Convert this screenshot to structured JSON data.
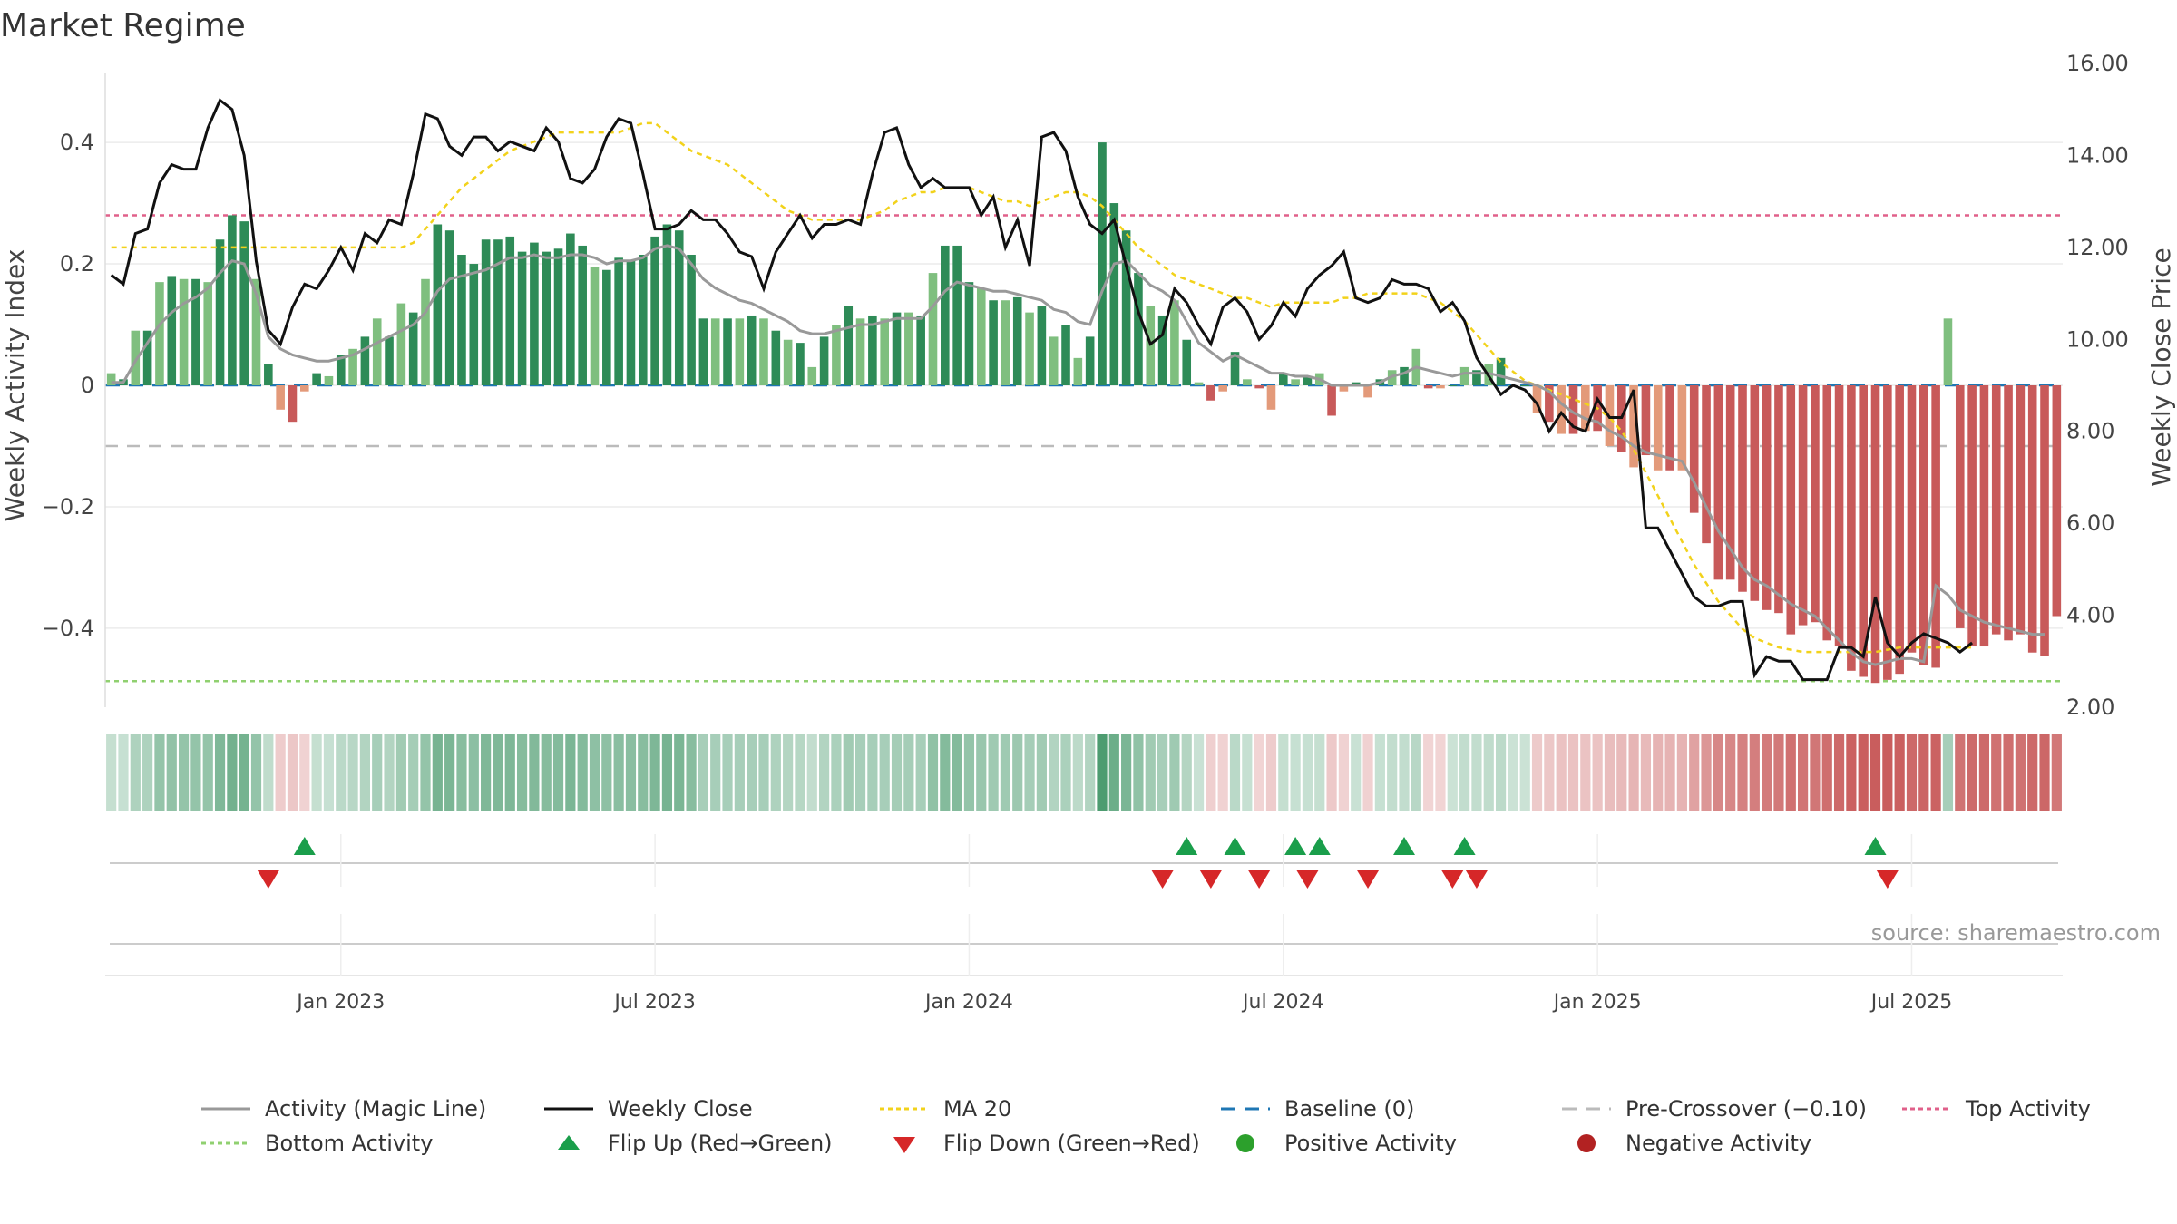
{
  "title": "Market Regime",
  "source": "source: sharemaestro.com",
  "colors": {
    "strongGreen": "#2e8b57",
    "lightGreen": "#7fbf7f",
    "strongRed": "#c85a5a",
    "lightRed": "#e39a7a",
    "close": "#111111",
    "magic": "#999999",
    "ma": "#f2d21b",
    "baseline": "#1f77b4",
    "pre": "#bbbbbb",
    "top": "#e0608a",
    "bottom": "#90d070",
    "flipUp": "#1a9e4b",
    "flipDown": "#d62728"
  },
  "legend": [
    {
      "key": "magic",
      "label": "Activity (Magic Line)"
    },
    {
      "key": "close",
      "label": "Weekly Close"
    },
    {
      "key": "ma",
      "label": "MA 20"
    },
    {
      "key": "baseline",
      "label": "Baseline (0)"
    },
    {
      "key": "pre",
      "label": "Pre-Crossover (−0.10)"
    },
    {
      "key": "top",
      "label": "Top Activity"
    },
    {
      "key": "bottom",
      "label": "Bottom Activity"
    },
    {
      "key": "flipUp",
      "label": "Flip Up (Red→Green)"
    },
    {
      "key": "flipDown",
      "label": "Flip Down (Green→Red)"
    },
    {
      "key": "pos",
      "label": "Positive Activity"
    },
    {
      "key": "neg",
      "label": "Negative Activity"
    }
  ],
  "chart_data": {
    "type": "bar",
    "title": "Market Regime",
    "ylabel": "Weekly Activity Index",
    "y2label": "Weekly Close Price",
    "ylim": [
      -0.53,
      0.53
    ],
    "y2lim": [
      2.0,
      16.0
    ],
    "yticks": [
      0.4,
      0.2,
      0,
      -0.2,
      -0.4
    ],
    "yticklabels": [
      "0.4",
      "0.2",
      "0",
      "−0.2",
      "−0.4"
    ],
    "y2ticks": [
      16,
      14,
      12,
      10,
      8,
      6,
      4,
      2
    ],
    "y2ticklabels": [
      "16.00",
      "14.00",
      "12.00",
      "10.00",
      "8.00",
      "6.00",
      "4.00",
      "2.00"
    ],
    "xticks": [
      19.5,
      45.5,
      71.5,
      97.5,
      123.5,
      149.5
    ],
    "xticklabels": [
      "Jan 2023",
      "Jul 2023",
      "Jan 2024",
      "Jul 2024",
      "Jan 2025",
      "Jul 2025"
    ],
    "reference_lines": {
      "baseline": 0,
      "pre_crossover": -0.1,
      "top_activity": 0.28,
      "bottom_activity": -0.487
    },
    "activity": [
      0.02,
      0.01,
      0.09,
      0.09,
      0.17,
      0.18,
      0.175,
      0.175,
      0.17,
      0.24,
      0.28,
      0.27,
      0.175,
      0.035,
      -0.04,
      -0.06,
      -0.01,
      0.02,
      0.015,
      0.05,
      0.06,
      0.08,
      0.11,
      0.08,
      0.135,
      0.12,
      0.175,
      0.265,
      0.255,
      0.215,
      0.2,
      0.24,
      0.24,
      0.245,
      0.22,
      0.235,
      0.22,
      0.225,
      0.25,
      0.23,
      0.195,
      0.19,
      0.21,
      0.205,
      0.215,
      0.245,
      0.265,
      0.255,
      0.215,
      0.11,
      0.11,
      0.11,
      0.11,
      0.115,
      0.11,
      0.09,
      0.075,
      0.07,
      0.03,
      0.08,
      0.1,
      0.13,
      0.11,
      0.115,
      0.11,
      0.12,
      0.12,
      0.115,
      0.185,
      0.23,
      0.23,
      0.17,
      0.16,
      0.14,
      0.14,
      0.145,
      0.12,
      0.13,
      0.08,
      0.1,
      0.045,
      0.08,
      0.4,
      0.3,
      0.255,
      0.185,
      0.13,
      0.115,
      0.14,
      0.075,
      0.005,
      -0.025,
      -0.01,
      0.055,
      0.01,
      -0.005,
      -0.04,
      0.02,
      0.01,
      0.015,
      0.02,
      -0.05,
      -0.01,
      0.005,
      -0.02,
      0.01,
      0.025,
      0.03,
      0.06,
      -0.005,
      -0.005,
      0.0,
      0.03,
      0.025,
      0.035,
      0.045,
      0.0,
      0.0,
      -0.045,
      -0.06,
      -0.08,
      -0.08,
      -0.075,
      -0.075,
      -0.1,
      -0.11,
      -0.135,
      -0.115,
      -0.14,
      -0.14,
      -0.14,
      -0.21,
      -0.26,
      -0.32,
      -0.32,
      -0.34,
      -0.355,
      -0.37,
      -0.375,
      -0.41,
      -0.395,
      -0.39,
      -0.42,
      -0.43,
      -0.47,
      -0.48,
      -0.49,
      -0.485,
      -0.475,
      -0.44,
      -0.46,
      -0.465,
      0.11,
      -0.4,
      -0.43,
      -0.43,
      -0.41,
      -0.42,
      -0.41,
      -0.44,
      -0.445,
      -0.38
    ],
    "weekly_close": [
      11.4,
      11.2,
      12.3,
      12.4,
      13.4,
      13.8,
      13.7,
      13.7,
      14.6,
      15.2,
      15.0,
      14.0,
      11.7,
      10.2,
      9.9,
      10.7,
      11.2,
      11.1,
      11.5,
      12.0,
      11.5,
      12.3,
      12.1,
      12.6,
      12.5,
      13.6,
      14.9,
      14.8,
      14.2,
      14.0,
      14.4,
      14.4,
      14.1,
      14.3,
      14.2,
      14.1,
      14.6,
      14.3,
      13.5,
      13.4,
      13.7,
      14.4,
      14.8,
      14.7,
      13.6,
      12.4,
      12.4,
      12.5,
      12.8,
      12.6,
      12.6,
      12.3,
      11.9,
      11.8,
      11.1,
      11.9,
      12.3,
      12.7,
      12.2,
      12.5,
      12.5,
      12.6,
      12.5,
      13.6,
      14.5,
      14.6,
      13.8,
      13.3,
      13.5,
      13.3,
      13.3,
      13.3,
      12.7,
      13.1,
      12.0,
      12.6,
      11.6,
      14.4,
      14.5,
      14.1,
      13.1,
      12.5,
      12.3,
      12.6,
      11.6,
      10.6,
      9.9,
      10.1,
      11.1,
      10.8,
      10.3,
      9.9,
      10.7,
      10.9,
      10.6,
      10.0,
      10.3,
      10.8,
      10.5,
      11.1,
      11.4,
      11.6,
      11.9,
      10.9,
      10.8,
      10.9,
      11.3,
      11.2,
      11.2,
      11.1,
      10.6,
      10.8,
      10.4,
      9.6,
      9.2,
      8.8,
      9.0,
      8.9,
      8.6,
      8.0,
      8.4,
      8.1,
      8.0,
      8.7,
      8.3,
      8.3,
      8.9,
      5.9,
      5.9,
      5.4,
      4.9,
      4.4,
      4.2,
      4.2,
      4.3,
      4.3,
      2.7,
      3.1,
      3.0,
      3.0,
      2.6,
      2.6,
      2.6,
      3.3,
      3.3,
      3.1,
      4.4,
      3.4,
      3.1,
      3.4,
      3.6,
      3.5,
      3.4,
      3.2,
      3.4
    ],
    "magic_line": [
      0.005,
      0.005,
      0.04,
      0.07,
      0.1,
      0.12,
      0.135,
      0.145,
      0.16,
      0.185,
      0.205,
      0.2,
      0.15,
      0.08,
      0.06,
      0.05,
      0.045,
      0.04,
      0.04,
      0.045,
      0.05,
      0.06,
      0.07,
      0.08,
      0.09,
      0.1,
      0.12,
      0.155,
      0.175,
      0.18,
      0.185,
      0.19,
      0.2,
      0.21,
      0.21,
      0.215,
      0.21,
      0.21,
      0.215,
      0.215,
      0.21,
      0.2,
      0.205,
      0.205,
      0.21,
      0.225,
      0.23,
      0.225,
      0.2,
      0.175,
      0.16,
      0.15,
      0.14,
      0.135,
      0.125,
      0.115,
      0.105,
      0.09,
      0.085,
      0.085,
      0.09,
      0.095,
      0.1,
      0.1,
      0.105,
      0.11,
      0.11,
      0.11,
      0.13,
      0.155,
      0.17,
      0.165,
      0.16,
      0.155,
      0.155,
      0.15,
      0.145,
      0.14,
      0.125,
      0.12,
      0.105,
      0.1,
      0.155,
      0.2,
      0.205,
      0.185,
      0.165,
      0.155,
      0.14,
      0.105,
      0.07,
      0.055,
      0.04,
      0.05,
      0.04,
      0.03,
      0.02,
      0.02,
      0.015,
      0.015,
      0.01,
      0.0,
      0.0,
      0.0,
      0.0,
      0.005,
      0.015,
      0.02,
      0.03,
      0.025,
      0.02,
      0.015,
      0.02,
      0.02,
      0.02,
      0.015,
      0.01,
      0.005,
      0.0,
      -0.01,
      -0.03,
      -0.045,
      -0.055,
      -0.06,
      -0.075,
      -0.085,
      -0.1,
      -0.11,
      -0.115,
      -0.12,
      -0.125,
      -0.16,
      -0.2,
      -0.24,
      -0.27,
      -0.3,
      -0.32,
      -0.33,
      -0.345,
      -0.36,
      -0.37,
      -0.38,
      -0.4,
      -0.42,
      -0.44,
      -0.455,
      -0.46,
      -0.455,
      -0.45,
      -0.45,
      -0.455,
      -0.33,
      -0.345,
      -0.37,
      -0.38,
      -0.39,
      -0.395,
      -0.4,
      -0.405,
      -0.41,
      -0.41
    ],
    "ma20": [
      12.0,
      12.0,
      12.0,
      12.0,
      12.0,
      12.0,
      12.0,
      12.0,
      12.0,
      12.0,
      12.0,
      12.0,
      12.0,
      12.0,
      12.0,
      12.0,
      12.0,
      12.0,
      12.0,
      12.0,
      12.0,
      12.0,
      12.0,
      12.0,
      12.0,
      12.1,
      12.4,
      12.7,
      13.0,
      13.3,
      13.5,
      13.7,
      13.9,
      14.1,
      14.2,
      14.3,
      14.4,
      14.5,
      14.5,
      14.5,
      14.5,
      14.5,
      14.5,
      14.6,
      14.7,
      14.7,
      14.5,
      14.3,
      14.1,
      14.0,
      13.9,
      13.8,
      13.6,
      13.4,
      13.2,
      13.0,
      12.8,
      12.7,
      12.6,
      12.6,
      12.6,
      12.6,
      12.6,
      12.7,
      12.8,
      13.0,
      13.1,
      13.2,
      13.2,
      13.3,
      13.3,
      13.3,
      13.2,
      13.1,
      13.0,
      13.0,
      12.9,
      13.0,
      13.1,
      13.2,
      13.2,
      13.1,
      12.9,
      12.6,
      12.3,
      12.0,
      11.8,
      11.6,
      11.4,
      11.3,
      11.2,
      11.1,
      11.0,
      10.9,
      10.9,
      10.8,
      10.7,
      10.8,
      10.8,
      10.8,
      10.8,
      10.8,
      10.9,
      10.9,
      11.0,
      11.0,
      11.0,
      11.0,
      11.0,
      10.9,
      10.8,
      10.6,
      10.4,
      10.1,
      9.8,
      9.5,
      9.3,
      9.1,
      9.0,
      8.9,
      8.8,
      8.7,
      8.6,
      8.5,
      8.3,
      8.0,
      7.6,
      7.1,
      6.6,
      6.1,
      5.6,
      5.1,
      4.7,
      4.3,
      4.0,
      3.7,
      3.5,
      3.4,
      3.3,
      3.25,
      3.2,
      3.2,
      3.2,
      3.2,
      3.2,
      3.2,
      3.2,
      3.25,
      3.3,
      3.3,
      3.3,
      3.3,
      3.3,
      3.3,
      3.3
    ],
    "flip_up_weeks": [
      16,
      89,
      93,
      98,
      100,
      107,
      112,
      146
    ],
    "flip_down_weeks": [
      13,
      87,
      91,
      95,
      99,
      104,
      111,
      113,
      147
    ]
  }
}
